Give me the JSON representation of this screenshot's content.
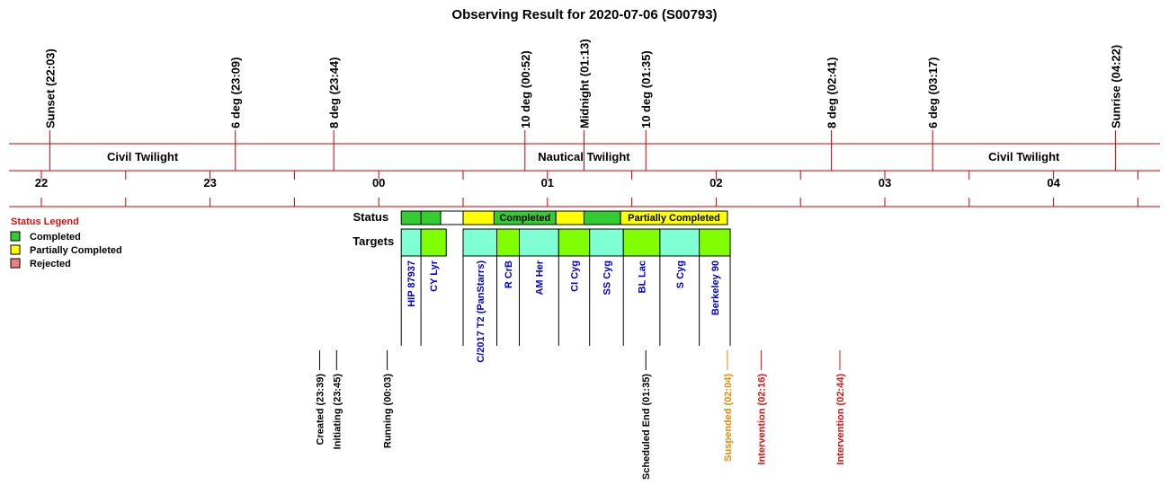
{
  "chart_data": {
    "type": "timeline",
    "title": "Observing Result for 2020-07-06 (S00793)",
    "time_axis": {
      "unit": "hour",
      "tick_labels": [
        "22",
        "23",
        "00",
        "01",
        "02",
        "03",
        "04"
      ]
    },
    "sun_events": [
      {
        "label": "Sunset (22:03)",
        "time": "22:03"
      },
      {
        "label": "6 deg (23:09)",
        "time": "23:09"
      },
      {
        "label": "8 deg (23:44)",
        "time": "23:44"
      },
      {
        "label": "10 deg (00:52)",
        "time": "00:52"
      },
      {
        "label": "Midnight (01:13)",
        "time": "01:13"
      },
      {
        "label": "10 deg (01:35)",
        "time": "01:35"
      },
      {
        "label": "8 deg (02:41)",
        "time": "02:41"
      },
      {
        "label": "6 deg (03:17)",
        "time": "03:17"
      },
      {
        "label": "Sunrise (04:22)",
        "time": "04:22"
      }
    ],
    "twilight_bands": [
      {
        "label": "Civil Twilight",
        "start": "22:03",
        "end": "23:09"
      },
      {
        "label": "Nautical Twilight",
        "start": "23:09",
        "end": "03:17"
      },
      {
        "label": "Civil Twilight",
        "start": "03:17",
        "end": "04:22"
      }
    ],
    "status_legend": {
      "title": "Status Legend",
      "items": [
        {
          "label": "Completed",
          "color": "#33cc33"
        },
        {
          "label": "Partially Completed",
          "color": "#ffff00"
        },
        {
          "label": "Rejected",
          "color": "#f08080"
        }
      ]
    },
    "row_labels": {
      "status": "Status",
      "targets": "Targets"
    },
    "status_segments": [
      {
        "start": "00:08",
        "end": "00:22",
        "status": "Completed",
        "label": ""
      },
      {
        "start": "00:30",
        "end": "00:41",
        "status": "Partially Completed",
        "label": ""
      },
      {
        "start": "00:41",
        "end": "01:03",
        "status": "Completed",
        "label": "Completed"
      },
      {
        "start": "01:03",
        "end": "01:13",
        "status": "Partially Completed",
        "label": ""
      },
      {
        "start": "01:13",
        "end": "01:26",
        "status": "Completed",
        "label": ""
      },
      {
        "start": "01:26",
        "end": "02:04",
        "status": "Partially Completed",
        "label": "Partially Completed"
      }
    ],
    "status_gaps": [
      {
        "start": "00:22",
        "end": "00:30"
      }
    ],
    "targets": [
      {
        "name": "HIP 87937",
        "start": "00:08",
        "end": "00:15",
        "color": "#7fffd4"
      },
      {
        "name": "CY Lyr",
        "start": "00:15",
        "end": "00:24",
        "color": "#7fff00"
      },
      {
        "name": "C/2017 T2 (PanStarrs)",
        "start": "00:30",
        "end": "00:42",
        "color": "#7fffd4"
      },
      {
        "name": "R CrB",
        "start": "00:42",
        "end": "00:50",
        "color": "#7fff00"
      },
      {
        "name": "AM Her",
        "start": "00:50",
        "end": "01:04",
        "color": "#7fffd4"
      },
      {
        "name": "CI Cyg",
        "start": "01:04",
        "end": "01:15",
        "color": "#7fff00"
      },
      {
        "name": "SS Cyg",
        "start": "01:15",
        "end": "01:27",
        "color": "#7fffd4"
      },
      {
        "name": "BL Lac",
        "start": "01:27",
        "end": "01:40",
        "color": "#7fff00"
      },
      {
        "name": "S Cyg",
        "start": "01:40",
        "end": "01:54",
        "color": "#7fffd4"
      },
      {
        "name": "Berkeley 90",
        "start": "01:54",
        "end": "02:05",
        "color": "#7fff00"
      }
    ],
    "events": [
      {
        "label": "Created (23:39)",
        "time": "23:39",
        "color": "#000000"
      },
      {
        "label": "Initiating (23:45)",
        "time": "23:45",
        "color": "#000000"
      },
      {
        "label": "Running (00:03)",
        "time": "00:03",
        "color": "#000000"
      },
      {
        "label": "Scheduled End (01:35)",
        "time": "01:35",
        "color": "#000000"
      },
      {
        "label": "Suspended (02:04)",
        "time": "02:04",
        "color": "#ee8800"
      },
      {
        "label": "Intervention (02:16)",
        "time": "02:16",
        "color": "#dd1111"
      },
      {
        "label": "Intervention (02:44)",
        "time": "02:44",
        "color": "#dd1111"
      }
    ]
  }
}
